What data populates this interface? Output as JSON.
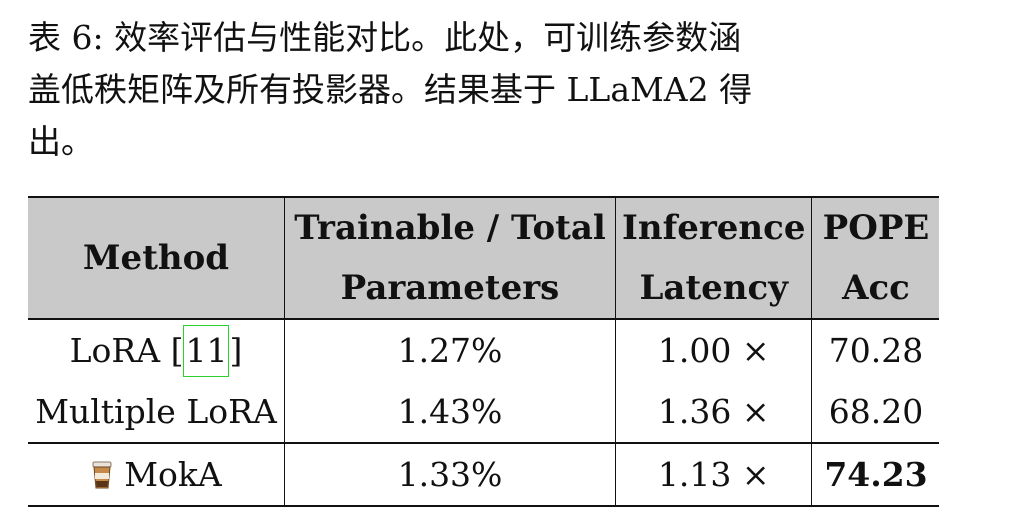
{
  "caption": {
    "line1": "表 6: 效率评估与性能对比。此处，可训练参数涵",
    "line2": "盖低秩矩阵及所有投影器。结果基于 LLaMA2 得",
    "line3": "出。"
  },
  "table": {
    "headers": {
      "method": "Method",
      "params_line1": "Trainable / Total",
      "params_line2": "Parameters",
      "latency_line1": "Inference",
      "latency_line2": "Latency",
      "pope_line1": "POPE",
      "pope_line2": "Acc"
    },
    "rows": [
      {
        "method": "LoRA [",
        "cite": "11",
        "method_end": "]",
        "params": "1.27%",
        "latency": "1.00 ×",
        "acc": "70.28"
      },
      {
        "method": "Multiple LoRA",
        "params": "1.43%",
        "latency": "1.36 ×",
        "acc": "68.20"
      },
      {
        "method": "MokA",
        "icon": "coffee-cup-icon",
        "params": "1.33%",
        "latency": "1.13 ×",
        "acc": "74.23"
      }
    ]
  },
  "colors": {
    "header_bg": "#c9c9c9",
    "citation_box": "#2bd22b"
  }
}
